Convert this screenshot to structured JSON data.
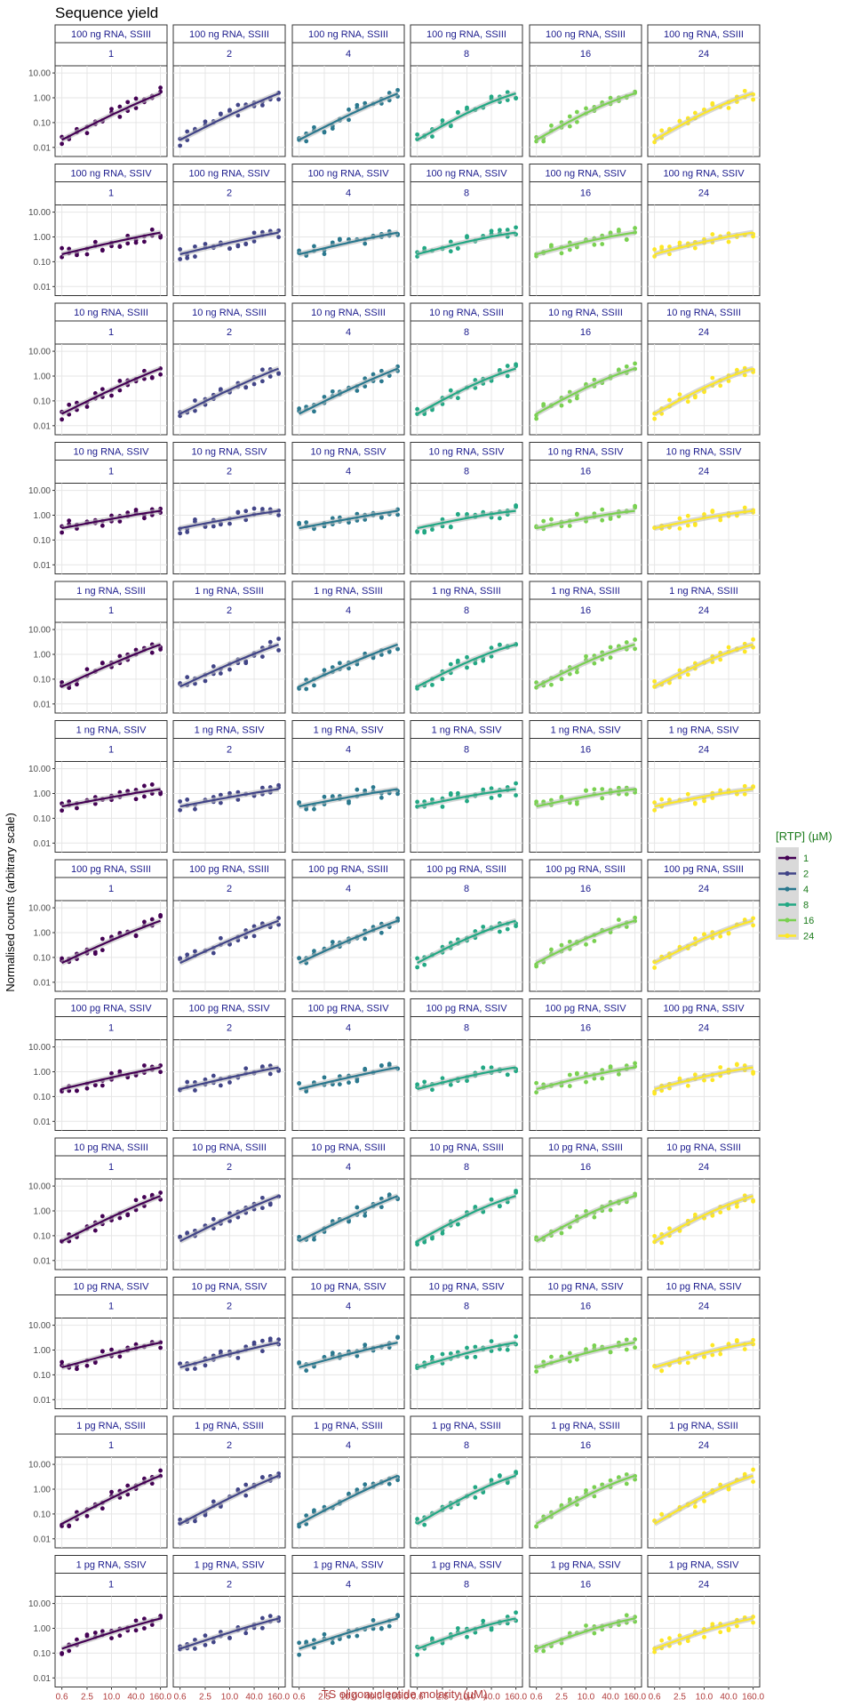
{
  "title": "Sequence yield",
  "chart_data": {
    "type": "scatter",
    "xlabel": "TS oligonucleotide molarity (µM)",
    "ylabel": "Normalised counts (arbitrary scale)",
    "x_scale": "log",
    "y_scale": "log",
    "x_ticks": [
      "0.6",
      "2.5",
      "10.0",
      "40.0",
      "160.0"
    ],
    "y_ticks": [
      "0.01",
      "0.10",
      "1.00",
      "10.00"
    ],
    "xlim": [
      0.5,
      190
    ],
    "ylim": [
      0.006,
      14
    ],
    "grid": true,
    "legend": {
      "title": "[RTP] (µM)",
      "position": "right",
      "entries": [
        {
          "label": "1",
          "color": "#440154"
        },
        {
          "label": "2",
          "color": "#414487"
        },
        {
          "label": "4",
          "color": "#2a788e"
        },
        {
          "label": "8",
          "color": "#22a884"
        },
        {
          "label": "16",
          "color": "#7ad151"
        },
        {
          "label": "24",
          "color": "#fde725"
        }
      ]
    },
    "row_labels": [
      "100 ng RNA, SSIII",
      "100 ng RNA, SSIV",
      "10 ng RNA, SSIII",
      "10 ng RNA, SSIV",
      "1 ng RNA, SSIII",
      "1 ng RNA, SSIV",
      "100 pg RNA, SSIII",
      "100 pg RNA, SSIV",
      "10 pg RNA, SSIII",
      "10 pg RNA, SSIV",
      "1 pg RNA, SSIII",
      "1 pg RNA, SSIV"
    ],
    "col_labels": [
      "1",
      "2",
      "4",
      "8",
      "16",
      "24"
    ],
    "trend_endpoints": {
      "description": "approximate smoothed fit value at x=0.6 and x=160 per row (log10 normalised counts)",
      "rows": [
        {
          "row": "100 ng RNA, SSIII",
          "start": 0.02,
          "end": 1.5
        },
        {
          "row": "100 ng RNA, SSIV",
          "start": 0.2,
          "end": 1.5
        },
        {
          "row": "10 ng RNA, SSIII",
          "start": 0.03,
          "end": 2.0
        },
        {
          "row": "10 ng RNA, SSIV",
          "start": 0.3,
          "end": 1.5
        },
        {
          "row": "1 ng RNA, SSIII",
          "start": 0.05,
          "end": 2.5
        },
        {
          "row": "1 ng RNA, SSIV",
          "start": 0.3,
          "end": 1.5
        },
        {
          "row": "100 pg RNA, SSIII",
          "start": 0.06,
          "end": 3.0
        },
        {
          "row": "100 pg RNA, SSIV",
          "start": 0.2,
          "end": 1.5
        },
        {
          "row": "10 pg RNA, SSIII",
          "start": 0.06,
          "end": 4.0
        },
        {
          "row": "10 pg RNA, SSIV",
          "start": 0.2,
          "end": 2.0
        },
        {
          "row": "1 pg RNA, SSIII",
          "start": 0.04,
          "end": 3.5
        },
        {
          "row": "1 pg RNA, SSIV",
          "start": 0.15,
          "end": 2.5
        }
      ]
    }
  }
}
